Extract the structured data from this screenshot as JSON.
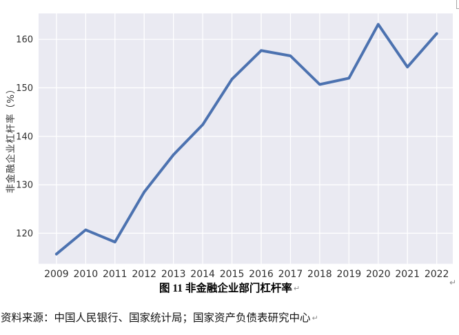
{
  "chart": {
    "colors": {
      "plot_bg": "#eaeaf2",
      "grid": "#ffffff",
      "line": "#4c72b0",
      "tick_text": "#2e2e2e"
    }
  },
  "chart_data": {
    "type": "line",
    "title": "",
    "xlabel": "",
    "ylabel": "非金融企业杠杆率（%）",
    "categories": [
      2009,
      2010,
      2011,
      2012,
      2013,
      2014,
      2015,
      2016,
      2017,
      2018,
      2019,
      2020,
      2021,
      2022
    ],
    "series": [
      {
        "name": "非金融企业部门杠杆率",
        "values": [
          115.7,
          120.7,
          118.2,
          128.5,
          136.2,
          142.4,
          151.8,
          157.7,
          156.6,
          150.7,
          152.0,
          163.1,
          154.3,
          161.2
        ]
      }
    ],
    "y_ticks": [
      120,
      130,
      140,
      150,
      160
    ],
    "ylim": [
      113.7,
      165.35
    ],
    "xlim": [
      2008.39,
      2022.55
    ],
    "grid": true,
    "legend": false
  },
  "caption": {
    "text": "图  11 非金融企业部门杠杆率",
    "pilcrow": "↵"
  },
  "source": {
    "text": "资料来源：中国人民银行、国家统计局；国家资产负债表研究中心",
    "pilcrow": "↵"
  },
  "marks": {
    "right_paragraph_mark": "↵"
  }
}
